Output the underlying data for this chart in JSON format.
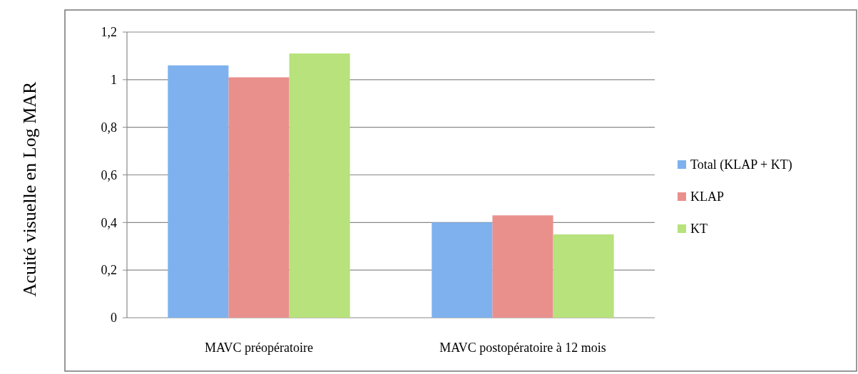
{
  "chart_data": {
    "type": "bar",
    "ylabel": "Acuité visuelle en Log MAR",
    "categories": [
      "MAVC préopératoire",
      "MAVC postopératoire à 12 mois"
    ],
    "series": [
      {
        "name": "Total (KLAP + KT)",
        "color": "#7eb1ee",
        "values": [
          1.06,
          0.4
        ]
      },
      {
        "name": "KLAP",
        "color": "#e9908d",
        "values": [
          1.01,
          0.43
        ]
      },
      {
        "name": "KT",
        "color": "#b7e27c",
        "values": [
          1.11,
          0.35
        ]
      }
    ],
    "ylim": [
      0,
      1.2
    ],
    "yticks": [
      0,
      {
        "value": 0.2,
        "label": "0,2"
      },
      {
        "value": 0.4,
        "label": "0,4"
      },
      {
        "value": 0.6,
        "label": "0,6"
      },
      {
        "value": 0.8,
        "label": "0,8"
      },
      1,
      {
        "value": 1.2,
        "label": "1,2"
      }
    ],
    "grid": "y",
    "legend": "right"
  }
}
